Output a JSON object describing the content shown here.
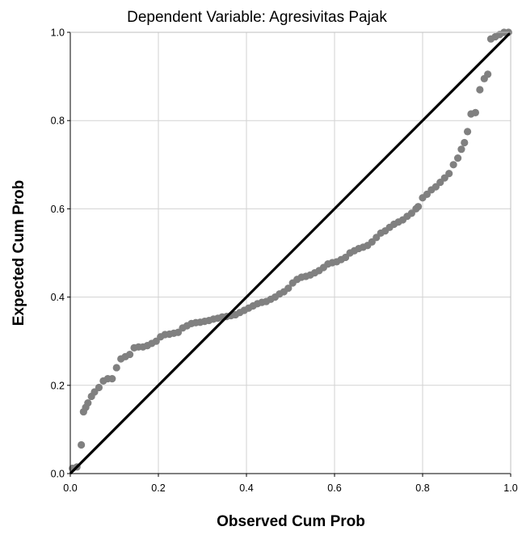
{
  "chart_data": {
    "type": "scatter",
    "title": "Dependent Variable: Agresivitas Pajak",
    "xlabel": "Observed Cum Prob",
    "ylabel": "Expected Cum Prob",
    "xlim": [
      0,
      1
    ],
    "ylim": [
      0,
      1
    ],
    "xticks": [
      "0.0",
      "0.2",
      "0.4",
      "0.6",
      "0.8",
      "1.0"
    ],
    "yticks": [
      "0.0",
      "0.2",
      "0.4",
      "0.6",
      "0.8",
      "1.0"
    ],
    "grid": true,
    "reference_line": {
      "from": [
        0,
        0
      ],
      "to": [
        1,
        1
      ],
      "color": "#000000"
    },
    "marker_color": "#808080",
    "points": [
      [
        0.005,
        0.012
      ],
      [
        0.015,
        0.015
      ],
      [
        0.025,
        0.065
      ],
      [
        0.03,
        0.14
      ],
      [
        0.035,
        0.15
      ],
      [
        0.04,
        0.16
      ],
      [
        0.048,
        0.175
      ],
      [
        0.055,
        0.185
      ],
      [
        0.065,
        0.195
      ],
      [
        0.075,
        0.21
      ],
      [
        0.085,
        0.215
      ],
      [
        0.095,
        0.215
      ],
      [
        0.105,
        0.24
      ],
      [
        0.115,
        0.26
      ],
      [
        0.125,
        0.265
      ],
      [
        0.135,
        0.27
      ],
      [
        0.145,
        0.285
      ],
      [
        0.155,
        0.287
      ],
      [
        0.165,
        0.287
      ],
      [
        0.175,
        0.29
      ],
      [
        0.185,
        0.295
      ],
      [
        0.195,
        0.3
      ],
      [
        0.205,
        0.31
      ],
      [
        0.215,
        0.315
      ],
      [
        0.225,
        0.316
      ],
      [
        0.235,
        0.318
      ],
      [
        0.245,
        0.32
      ],
      [
        0.255,
        0.33
      ],
      [
        0.265,
        0.335
      ],
      [
        0.275,
        0.34
      ],
      [
        0.285,
        0.342
      ],
      [
        0.295,
        0.343
      ],
      [
        0.305,
        0.345
      ],
      [
        0.315,
        0.347
      ],
      [
        0.325,
        0.35
      ],
      [
        0.335,
        0.352
      ],
      [
        0.345,
        0.355
      ],
      [
        0.355,
        0.356
      ],
      [
        0.365,
        0.358
      ],
      [
        0.375,
        0.36
      ],
      [
        0.385,
        0.365
      ],
      [
        0.395,
        0.37
      ],
      [
        0.405,
        0.375
      ],
      [
        0.415,
        0.38
      ],
      [
        0.425,
        0.385
      ],
      [
        0.435,
        0.388
      ],
      [
        0.445,
        0.39
      ],
      [
        0.455,
        0.395
      ],
      [
        0.465,
        0.4
      ],
      [
        0.475,
        0.407
      ],
      [
        0.485,
        0.412
      ],
      [
        0.495,
        0.42
      ],
      [
        0.505,
        0.432
      ],
      [
        0.515,
        0.44
      ],
      [
        0.525,
        0.445
      ],
      [
        0.535,
        0.447
      ],
      [
        0.545,
        0.45
      ],
      [
        0.555,
        0.455
      ],
      [
        0.565,
        0.46
      ],
      [
        0.575,
        0.467
      ],
      [
        0.585,
        0.475
      ],
      [
        0.595,
        0.478
      ],
      [
        0.605,
        0.48
      ],
      [
        0.615,
        0.485
      ],
      [
        0.625,
        0.49
      ],
      [
        0.635,
        0.5
      ],
      [
        0.645,
        0.505
      ],
      [
        0.655,
        0.51
      ],
      [
        0.665,
        0.513
      ],
      [
        0.675,
        0.517
      ],
      [
        0.685,
        0.525
      ],
      [
        0.695,
        0.535
      ],
      [
        0.705,
        0.545
      ],
      [
        0.715,
        0.55
      ],
      [
        0.725,
        0.558
      ],
      [
        0.735,
        0.565
      ],
      [
        0.745,
        0.57
      ],
      [
        0.755,
        0.575
      ],
      [
        0.765,
        0.583
      ],
      [
        0.775,
        0.59
      ],
      [
        0.785,
        0.6
      ],
      [
        0.79,
        0.605
      ],
      [
        0.8,
        0.625
      ],
      [
        0.81,
        0.633
      ],
      [
        0.82,
        0.643
      ],
      [
        0.83,
        0.65
      ],
      [
        0.84,
        0.66
      ],
      [
        0.85,
        0.67
      ],
      [
        0.86,
        0.68
      ],
      [
        0.87,
        0.7
      ],
      [
        0.88,
        0.715
      ],
      [
        0.888,
        0.735
      ],
      [
        0.895,
        0.75
      ],
      [
        0.902,
        0.775
      ],
      [
        0.91,
        0.815
      ],
      [
        0.92,
        0.818
      ],
      [
        0.93,
        0.87
      ],
      [
        0.94,
        0.895
      ],
      [
        0.948,
        0.905
      ],
      [
        0.955,
        0.985
      ],
      [
        0.965,
        0.99
      ],
      [
        0.975,
        0.995
      ],
      [
        0.985,
        1.0
      ],
      [
        0.995,
        1.0
      ]
    ]
  }
}
